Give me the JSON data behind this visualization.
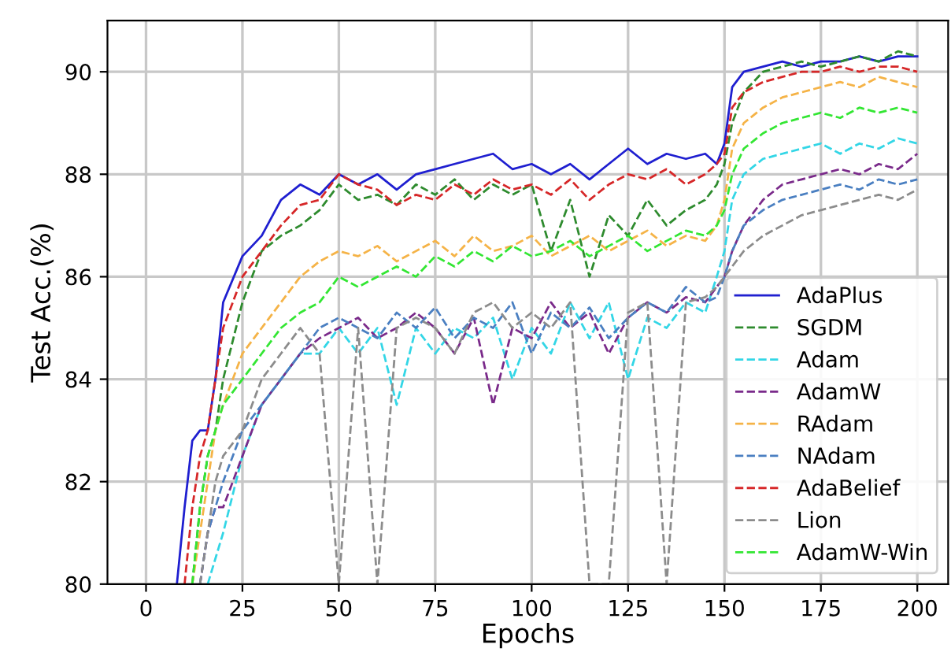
{
  "chart_data": {
    "type": "line",
    "xlabel": "Epochs",
    "ylabel": "Test Acc.(%)",
    "x": [
      8,
      10,
      12,
      14,
      16,
      18,
      20,
      25,
      30,
      35,
      40,
      45,
      50,
      55,
      60,
      65,
      70,
      75,
      80,
      85,
      90,
      95,
      100,
      105,
      110,
      115,
      120,
      125,
      130,
      135,
      140,
      145,
      148,
      150,
      152,
      155,
      160,
      165,
      170,
      175,
      180,
      185,
      190,
      195,
      200
    ],
    "series": [
      {
        "name": "AdaPlus",
        "color": "#1f1fd0",
        "line_style": "solid",
        "values": [
          80,
          81.5,
          82.8,
          83,
          83,
          84,
          85.5,
          86.4,
          86.8,
          87.5,
          87.8,
          87.6,
          88,
          87.8,
          88,
          87.7,
          88,
          88.1,
          88.2,
          88.3,
          88.4,
          88.1,
          88.2,
          88,
          88.2,
          87.9,
          88.2,
          88.5,
          88.2,
          88.4,
          88.3,
          88.4,
          88.2,
          88.6,
          89.7,
          90,
          90.1,
          90.2,
          90.1,
          90.2,
          90.2,
          90.3,
          90.2,
          90.3,
          90.3
        ]
      },
      {
        "name": "SGDM",
        "color": "#2e8b2e",
        "line_style": "dashed",
        "values": [
          null,
          null,
          80,
          81.5,
          82.5,
          83,
          84,
          85.5,
          86.5,
          86.8,
          87,
          87.3,
          87.8,
          87.5,
          87.6,
          87.4,
          87.8,
          87.6,
          87.9,
          87.5,
          87.8,
          87.6,
          87.8,
          86.5,
          87.5,
          86,
          87.2,
          86.8,
          87.5,
          87,
          87.3,
          87.5,
          87.8,
          88.2,
          89,
          89.6,
          90,
          90.1,
          90.2,
          90.1,
          90.2,
          90.3,
          90.2,
          90.4,
          90.3
        ]
      },
      {
        "name": "Adam",
        "color": "#33d6e6",
        "line_style": "dashed",
        "values": [
          null,
          null,
          null,
          null,
          80,
          80.5,
          81,
          82.5,
          83.5,
          84,
          84.5,
          84.5,
          85,
          84.5,
          85,
          83.5,
          85,
          84.5,
          85,
          84.8,
          85.2,
          84,
          85,
          84.5,
          85.5,
          84.8,
          85.5,
          84,
          85.2,
          85,
          85.5,
          85.3,
          86,
          86.5,
          87.5,
          88,
          88.3,
          88.4,
          88.5,
          88.6,
          88.4,
          88.6,
          88.5,
          88.7,
          88.6
        ]
      },
      {
        "name": "AdamW",
        "color": "#7a2a8a",
        "line_style": "dashed",
        "values": [
          null,
          null,
          null,
          80,
          81,
          81.5,
          81.5,
          82.5,
          83.5,
          84,
          84.5,
          84.8,
          85,
          85.2,
          84.8,
          85,
          85.3,
          85,
          84.5,
          85.2,
          83.5,
          85,
          84.8,
          85.5,
          85,
          85.3,
          84.5,
          85.2,
          85.5,
          85.3,
          85.6,
          85.5,
          85.8,
          86,
          86.5,
          87,
          87.5,
          87.8,
          87.9,
          88,
          88.1,
          88,
          88.2,
          88.1,
          88.4
        ]
      },
      {
        "name": "RAdam",
        "color": "#f5b347",
        "line_style": "dashed",
        "values": [
          null,
          null,
          80,
          81,
          82,
          83,
          83.5,
          84.5,
          85,
          85.5,
          86,
          86.3,
          86.5,
          86.4,
          86.6,
          86.3,
          86.5,
          86.7,
          86.4,
          86.8,
          86.5,
          86.6,
          86.8,
          86.4,
          86.6,
          86.8,
          86.5,
          86.7,
          86.9,
          86.6,
          86.8,
          86.7,
          87,
          87.5,
          88.5,
          89,
          89.3,
          89.5,
          89.6,
          89.7,
          89.8,
          89.7,
          89.9,
          89.8,
          89.7
        ]
      },
      {
        "name": "NAdam",
        "color": "#4a7fc1",
        "line_style": "dashed",
        "values": [
          null,
          null,
          null,
          80,
          81,
          81.5,
          82,
          83,
          83.5,
          84,
          84.5,
          85,
          85.2,
          85,
          84.8,
          85.3,
          85,
          85.4,
          84.8,
          85.2,
          85,
          85.5,
          84.5,
          85.3,
          85,
          85.4,
          84.8,
          85.2,
          85.5,
          85.3,
          85.8,
          85.5,
          85.6,
          86,
          86.5,
          87,
          87.3,
          87.5,
          87.6,
          87.7,
          87.8,
          87.7,
          87.9,
          87.8,
          87.9
        ]
      },
      {
        "name": "AdaBelief",
        "color": "#d62728",
        "line_style": "dashed",
        "values": [
          null,
          80,
          81.5,
          82.5,
          83,
          84,
          85,
          86,
          86.5,
          87,
          87.4,
          87.5,
          88,
          87.8,
          87.7,
          87.4,
          87.6,
          87.5,
          87.8,
          87.6,
          87.9,
          87.7,
          87.8,
          87.6,
          87.9,
          87.5,
          87.8,
          88,
          87.9,
          88.1,
          87.8,
          88,
          88.2,
          88.4,
          89.3,
          89.6,
          89.8,
          89.9,
          90,
          90,
          90.1,
          90,
          90.1,
          90.1,
          90
        ]
      },
      {
        "name": "Lion",
        "color": "#8c8c8c",
        "line_style": "dashed",
        "values": [
          null,
          null,
          null,
          80,
          81,
          82,
          82.5,
          83,
          84,
          84.5,
          85,
          84.5,
          80,
          85,
          80,
          85,
          85.2,
          85,
          84.5,
          85.3,
          85.5,
          85,
          85.3,
          85,
          85.5,
          80,
          80,
          85.3,
          85.5,
          80,
          85.5,
          85.6,
          85.8,
          86,
          86.2,
          86.5,
          86.8,
          87,
          87.2,
          87.3,
          87.4,
          87.5,
          87.6,
          87.5,
          87.7
        ]
      },
      {
        "name": "AdamW-Win",
        "color": "#33e633",
        "line_style": "dashed",
        "values": [
          null,
          null,
          80,
          81.5,
          82.5,
          83,
          83.5,
          84,
          84.5,
          85,
          85.3,
          85.5,
          86,
          85.8,
          86,
          86.2,
          86,
          86.4,
          86.2,
          86.5,
          86.3,
          86.6,
          86.4,
          86.5,
          86.7,
          86.4,
          86.6,
          86.8,
          86.5,
          86.7,
          86.9,
          86.8,
          87,
          87.3,
          88,
          88.5,
          88.8,
          89,
          89.1,
          89.2,
          89.1,
          89.3,
          89.2,
          89.3,
          89.2
        ]
      }
    ],
    "xlim": [
      -10,
      208
    ],
    "ylim": [
      80,
      91
    ],
    "xticks": [
      0,
      25,
      50,
      75,
      100,
      125,
      150,
      175,
      200
    ],
    "yticks": [
      80,
      82,
      84,
      86,
      88,
      90
    ],
    "grid": true,
    "legend": "bottom right"
  }
}
